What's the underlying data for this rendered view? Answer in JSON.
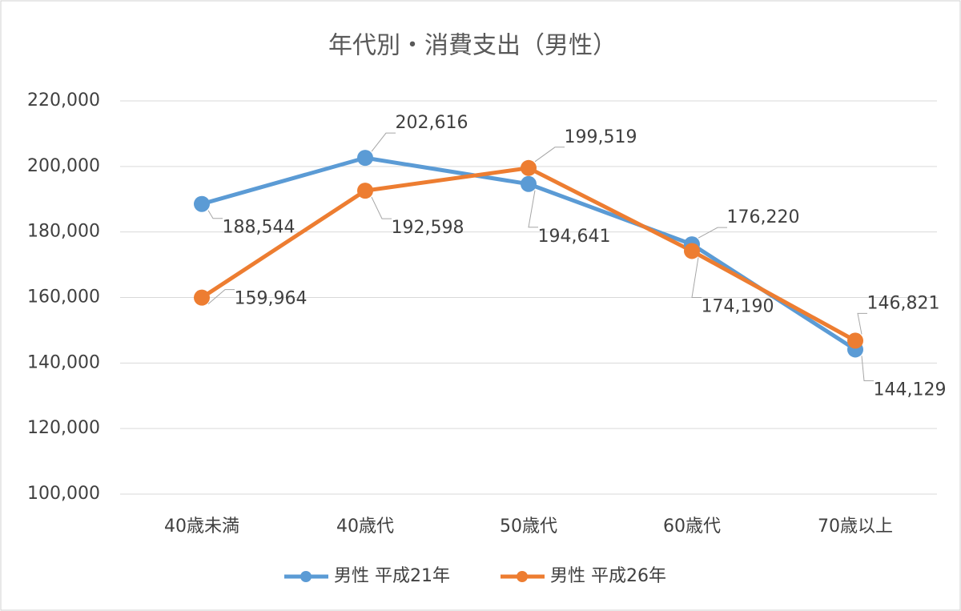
{
  "chart_data": {
    "type": "line",
    "title": "年代別・消費支出（男性）",
    "categories": [
      "40歳未満",
      "40歳代",
      "50歳代",
      "60歳代",
      "70歳以上"
    ],
    "series": [
      {
        "name": "男性 平成21年",
        "color": "#5b9bd5",
        "values": [
          188544,
          202616,
          194641,
          176220,
          144129
        ],
        "value_labels": [
          "188,544",
          "202,616",
          "194,641",
          "176,220",
          "144,129"
        ]
      },
      {
        "name": "男性 平成26年",
        "color": "#ed7d31",
        "values": [
          159964,
          192598,
          199519,
          174190,
          146821
        ],
        "value_labels": [
          "159,964",
          "192,598",
          "199,519",
          "174,190",
          "146,821"
        ]
      }
    ],
    "ylim": [
      100000,
      220000
    ],
    "yticks": [
      {
        "value": 100000,
        "label": "100,000"
      },
      {
        "value": 120000,
        "label": "120,000"
      },
      {
        "value": 140000,
        "label": "140,000"
      },
      {
        "value": 160000,
        "label": "160,000"
      },
      {
        "value": 180000,
        "label": "180,000"
      },
      {
        "value": 200000,
        "label": "200,000"
      },
      {
        "value": 220000,
        "label": "220,000"
      }
    ],
    "grid": true,
    "legend": "bottom"
  }
}
